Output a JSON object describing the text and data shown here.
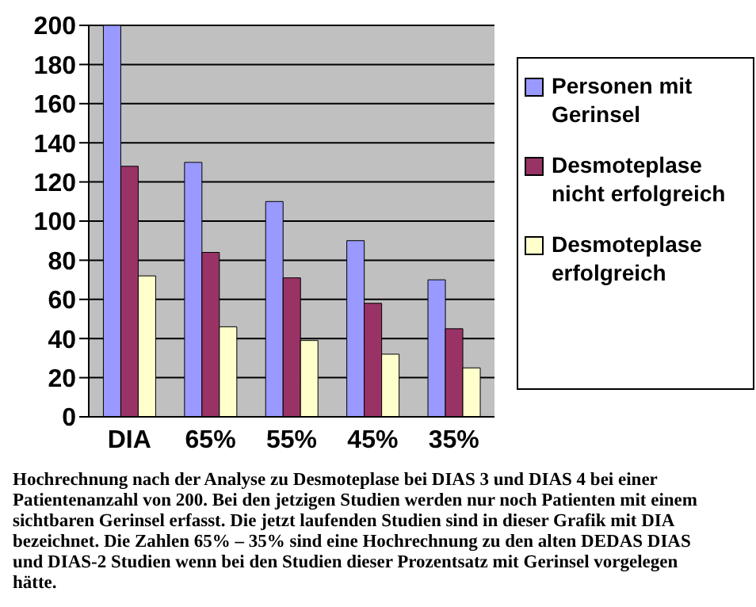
{
  "chart_data": {
    "type": "bar",
    "categories": [
      "DIA",
      "65%",
      "55%",
      "45%",
      "35%"
    ],
    "series": [
      {
        "name": "Personen mit Gerinsel",
        "color": "#9999ff",
        "values": [
          200,
          130,
          110,
          90,
          70
        ]
      },
      {
        "name": "Desmoteplase nicht erfolgreich",
        "color": "#993366",
        "values": [
          128,
          84,
          71,
          58,
          45
        ]
      },
      {
        "name": "Desmoteplase erfolgreich",
        "color": "#ffffcc",
        "values": [
          72,
          46,
          39,
          32,
          25
        ]
      }
    ],
    "ylim": [
      0,
      200
    ],
    "yticks": [
      0,
      20,
      40,
      60,
      80,
      100,
      120,
      140,
      160,
      180,
      200
    ],
    "grid": "y",
    "legend": "right",
    "annotations": [
      "Hochrechnung nach der Analyse zu Desmoteplase bei DIAS 3 und DIAS 4 bei einer Patientenanzahl von 200. Bei den jetzigen Studien werden nur noch Patienten mit einem sichtbaren Gerinsel erfasst. Die jetzt laufenden Studien sind in dieser Grafik mit DIA bezeichnet.  Die Zahlen 65% – 35%  sind eine Hochrechnung zu den alten DEDAS DIAS und DIAS-2 Studien wenn bei den Studien dieser Prozentsatz mit Gerinsel vorgelegen hätte."
    ]
  }
}
